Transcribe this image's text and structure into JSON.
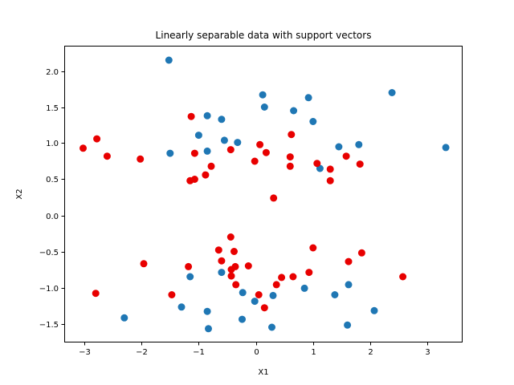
{
  "chart_data": {
    "type": "scatter",
    "title": "Linearly separable data with support vectors",
    "xlabel": "X1",
    "ylabel": "X2",
    "xlim": [
      -3.35,
      3.6
    ],
    "ylim": [
      -1.75,
      2.35
    ],
    "xticks": [
      -3,
      -2,
      -1,
      0,
      1,
      2,
      3
    ],
    "yticks": [
      -1.5,
      -1.0,
      -0.5,
      0.0,
      0.5,
      1.0,
      1.5,
      2.0
    ],
    "grid": false,
    "series": [
      {
        "color": "#1f77b4",
        "points": [
          [
            -1.52,
            2.15
          ],
          [
            -0.85,
            1.38
          ],
          [
            -0.6,
            1.33
          ],
          [
            -1.0,
            1.11
          ],
          [
            -0.55,
            1.04
          ],
          [
            -0.32,
            1.01
          ],
          [
            -0.85,
            0.89
          ],
          [
            -1.5,
            0.86
          ],
          [
            0.12,
            1.67
          ],
          [
            0.15,
            1.5
          ],
          [
            0.66,
            1.45
          ],
          [
            0.92,
            1.63
          ],
          [
            1.0,
            1.3
          ],
          [
            2.38,
            1.7
          ],
          [
            1.45,
            0.95
          ],
          [
            1.8,
            0.98
          ],
          [
            1.12,
            0.65
          ],
          [
            3.32,
            0.94
          ],
          [
            -2.3,
            -1.42
          ],
          [
            -1.3,
            -1.27
          ],
          [
            -1.15,
            -0.85
          ],
          [
            -0.85,
            -1.33
          ],
          [
            -0.83,
            -1.57
          ],
          [
            -0.6,
            -0.79
          ],
          [
            -0.23,
            -1.07
          ],
          [
            -0.24,
            -1.44
          ],
          [
            -0.02,
            -1.19
          ],
          [
            0.28,
            -1.55
          ],
          [
            0.3,
            -1.11
          ],
          [
            0.85,
            -1.01
          ],
          [
            1.38,
            -1.1
          ],
          [
            1.6,
            -1.52
          ],
          [
            1.62,
            -0.96
          ],
          [
            2.07,
            -1.32
          ]
        ]
      },
      {
        "color": "#e80000",
        "points": [
          [
            -3.02,
            0.93
          ],
          [
            -2.78,
            1.06
          ],
          [
            -2.6,
            0.82
          ],
          [
            -2.02,
            0.78
          ],
          [
            -1.13,
            1.37
          ],
          [
            -1.07,
            0.86
          ],
          [
            -0.88,
            0.56
          ],
          [
            -0.78,
            0.68
          ],
          [
            -1.15,
            0.48
          ],
          [
            -1.07,
            0.5
          ],
          [
            -0.44,
            0.91
          ],
          [
            0.07,
            0.98
          ],
          [
            0.18,
            0.87
          ],
          [
            0.62,
            1.12
          ],
          [
            0.6,
            0.81
          ],
          [
            0.6,
            0.68
          ],
          [
            -0.02,
            0.75
          ],
          [
            1.07,
            0.72
          ],
          [
            1.3,
            0.64
          ],
          [
            1.3,
            0.48
          ],
          [
            1.58,
            0.82
          ],
          [
            1.82,
            0.71
          ],
          [
            0.31,
            0.24
          ],
          [
            -2.8,
            -1.08
          ],
          [
            -1.96,
            -0.67
          ],
          [
            -1.47,
            -1.1
          ],
          [
            -1.18,
            -0.71
          ],
          [
            -0.65,
            -0.48
          ],
          [
            -0.6,
            -0.63
          ],
          [
            -0.44,
            -0.3
          ],
          [
            -0.38,
            -0.5
          ],
          [
            -0.43,
            -0.75
          ],
          [
            -0.36,
            -0.71
          ],
          [
            -0.43,
            -0.84
          ],
          [
            -0.35,
            -0.96
          ],
          [
            -0.13,
            -0.7
          ],
          [
            0.05,
            -1.1
          ],
          [
            0.15,
            -1.28
          ],
          [
            0.36,
            -0.96
          ],
          [
            0.45,
            -0.86
          ],
          [
            0.65,
            -0.85
          ],
          [
            0.93,
            -0.79
          ],
          [
            1.0,
            -0.45
          ],
          [
            1.62,
            -0.64
          ],
          [
            1.85,
            -0.52
          ],
          [
            2.57,
            -0.85
          ]
        ]
      }
    ]
  }
}
